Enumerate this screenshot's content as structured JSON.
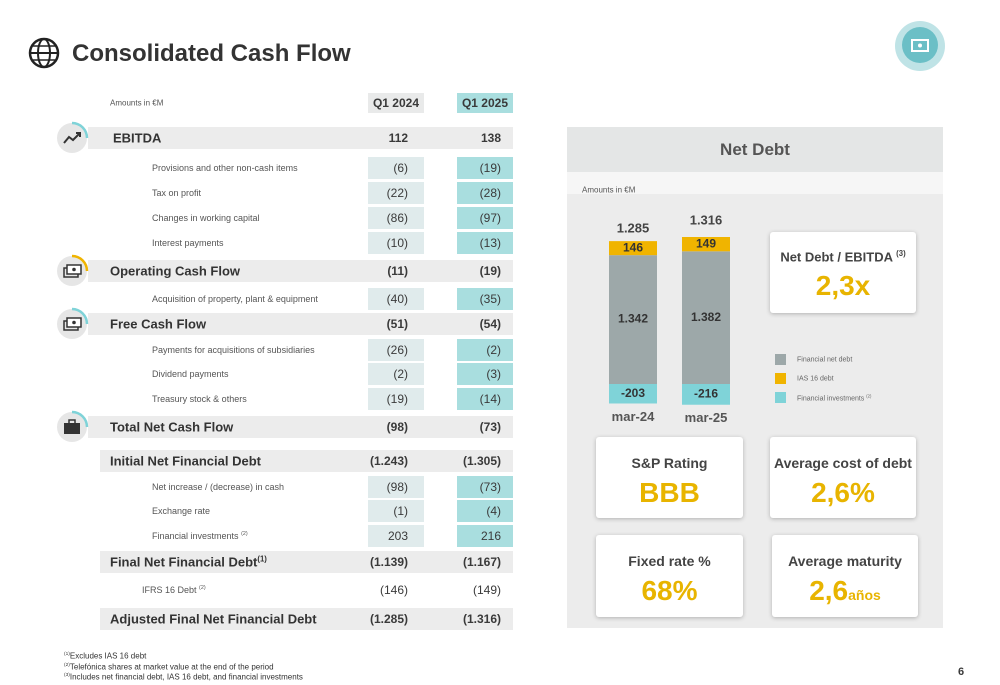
{
  "header": {
    "title": "Consolidated Cash Flow"
  },
  "table": {
    "units": "Amounts in €M",
    "columns": [
      "Q1 2024",
      "Q1 2025"
    ],
    "rows": [
      {
        "label": "EBITDA",
        "values": [
          "112",
          "138"
        ]
      },
      {
        "label": "Provisions and other non-cash items",
        "values": [
          "(6)",
          "(19)"
        ]
      },
      {
        "label": "Tax on profit",
        "values": [
          "(22)",
          "(28)"
        ]
      },
      {
        "label": "Changes in working capital",
        "values": [
          "(86)",
          "(97)"
        ]
      },
      {
        "label": "Interest payments",
        "values": [
          "(10)",
          "(13)"
        ]
      },
      {
        "label": "Operating Cash Flow",
        "values": [
          "(11)",
          "(19)"
        ]
      },
      {
        "label": "Acquisition of property, plant & equipment",
        "values": [
          "(40)",
          "(35)"
        ]
      },
      {
        "label": "Free Cash Flow",
        "values": [
          "(51)",
          "(54)"
        ]
      },
      {
        "label": "Payments for acquisitions of subsidiaries",
        "values": [
          "(26)",
          "(2)"
        ]
      },
      {
        "label": "Dividend payments",
        "values": [
          "(2)",
          "(3)"
        ]
      },
      {
        "label": "Treasury stock & others",
        "values": [
          "(19)",
          "(14)"
        ]
      },
      {
        "label": "Total Net Cash Flow",
        "values": [
          "(98)",
          "(73)"
        ]
      },
      {
        "label": "Initial Net Financial Debt",
        "values": [
          "(1.243)",
          "(1.305)"
        ]
      },
      {
        "label": "Net increase / (decrease) in cash",
        "values": [
          "(98)",
          "(73)"
        ]
      },
      {
        "label": "Exchange rate",
        "values": [
          "(1)",
          "(4)"
        ]
      },
      {
        "label": "Financial investments",
        "note": "(2)",
        "values": [
          "203",
          "216"
        ]
      },
      {
        "label": "Final Net Financial Debt",
        "note": "(1)",
        "values": [
          "(1.139)",
          "(1.167)"
        ]
      },
      {
        "label": "IFRS 16 Debt",
        "note": "(2)",
        "values": [
          "(146)",
          "(149)"
        ]
      },
      {
        "label": "Adjusted Final Net Financial Debt",
        "values": [
          "(1.285)",
          "(1.316)"
        ]
      }
    ]
  },
  "net_debt": {
    "type": "bar",
    "title": "Net Debt",
    "units": "Amounts in €M",
    "categories": [
      "mar-24",
      "mar-25"
    ],
    "totals": [
      1285,
      1316
    ],
    "total_labels": [
      "1.285",
      "1.316"
    ],
    "series": [
      {
        "name": "Financial net debt",
        "color": "#9da8a9",
        "values": [
          1342,
          1382
        ],
        "value_labels": [
          "1.342",
          "1.382"
        ]
      },
      {
        "name": "IAS 16 debt",
        "color": "#f0b400",
        "values": [
          146,
          149
        ]
      },
      {
        "name": "Financial investments",
        "note": "(2)",
        "color": "#7fd3d8",
        "values": [
          -203,
          -216
        ]
      }
    ]
  },
  "kpis": [
    {
      "title": "Net Debt / EBITDA",
      "note": "(3)",
      "value": "2,3x"
    },
    {
      "title": "S&P Rating",
      "value": "BBB"
    },
    {
      "title": "Average cost of debt",
      "value": "2,6%"
    },
    {
      "title": "Fixed rate %",
      "value": "68%"
    },
    {
      "title": "Average maturity",
      "value": "2,6",
      "unit": "años"
    }
  ],
  "footnotes": [
    {
      "mark": "(1)",
      "text": "Excludes IAS 16 debt"
    },
    {
      "mark": "(2)",
      "text": "Telefónica shares at market value at the end of the period"
    },
    {
      "mark": "(3)",
      "text": "Includes net financial debt, IAS 16 debt, and financial investments"
    }
  ],
  "page_number": "6"
}
